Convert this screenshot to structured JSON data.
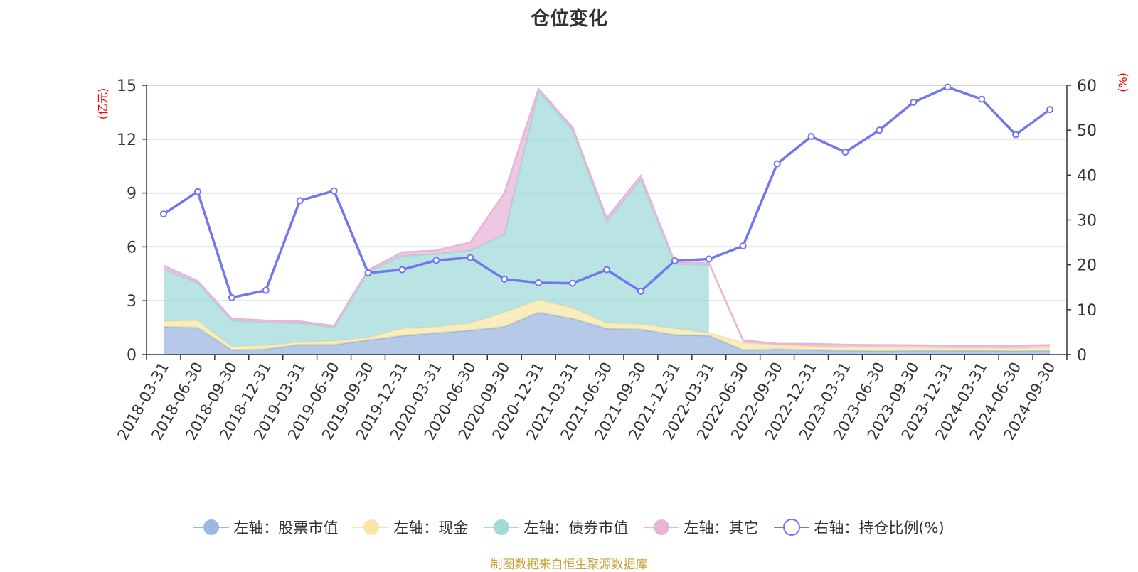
{
  "title": "仓位变化",
  "source_note": "制图数据来自恒生聚源数据库",
  "colors": {
    "stock": "#9db7e0",
    "cash": "#f7e6a7",
    "bond": "#a3d9d9",
    "other": "#e8b5d8",
    "ratio": "#7376ef",
    "axis_unit": "#ff0000",
    "grid": "#c8c8c8",
    "text": "#333333"
  },
  "legend": [
    {
      "key": "stock",
      "label": "左轴：股票市值",
      "marker": "filled-circle"
    },
    {
      "key": "cash",
      "label": "左轴：现金",
      "marker": "filled-circle"
    },
    {
      "key": "bond",
      "label": "左轴：债券市值",
      "marker": "filled-circle"
    },
    {
      "key": "other",
      "label": "左轴：其它",
      "marker": "filled-circle"
    },
    {
      "key": "ratio",
      "label": "右轴：持仓比例(%)",
      "marker": "hollow-circle"
    }
  ],
  "chart_data": {
    "type": "area",
    "title": "仓位变化",
    "left_axis": {
      "unit_label": "(亿元)",
      "min": 0,
      "max": 15,
      "ticks": [
        0,
        3,
        6,
        9,
        12,
        15
      ]
    },
    "right_axis": {
      "unit_label": "(%)",
      "min": 0,
      "max": 60,
      "ticks": [
        0,
        10,
        20,
        30,
        40,
        50,
        60
      ]
    },
    "grid": true,
    "legend_position": "bottom",
    "x": [
      "2018-03-31",
      "2018-06-30",
      "2018-09-30",
      "2018-12-31",
      "2019-03-31",
      "2019-06-30",
      "2019-09-30",
      "2019-12-31",
      "2020-03-31",
      "2020-06-30",
      "2020-09-30",
      "2020-12-31",
      "2021-03-31",
      "2021-06-30",
      "2021-09-30",
      "2021-12-31",
      "2022-03-31",
      "2022-06-30",
      "2022-09-30",
      "2022-12-31",
      "2023-03-31",
      "2023-06-30",
      "2023-09-30",
      "2023-12-31",
      "2024-03-31",
      "2024-06-30",
      "2024-09-30"
    ],
    "series": [
      {
        "name": "左轴：股票市值",
        "axis": "left",
        "stacked": true,
        "values": [
          1.55,
          1.5,
          0.25,
          0.3,
          0.55,
          0.55,
          0.8,
          1.05,
          1.2,
          1.35,
          1.55,
          2.35,
          2.0,
          1.45,
          1.4,
          1.1,
          1.05,
          0.25,
          0.3,
          0.25,
          0.22,
          0.2,
          0.22,
          0.22,
          0.22,
          0.2,
          0.22
        ]
      },
      {
        "name": "左轴：现金",
        "axis": "left",
        "stacked": true,
        "values": [
          0.3,
          0.4,
          0.2,
          0.2,
          0.15,
          0.2,
          0.15,
          0.4,
          0.35,
          0.4,
          0.8,
          0.7,
          0.6,
          0.3,
          0.3,
          0.35,
          0.15,
          0.4,
          0.25,
          0.2,
          0.2,
          0.2,
          0.18,
          0.15,
          0.15,
          0.15,
          0.18
        ]
      },
      {
        "name": "左轴：债券市值",
        "axis": "left",
        "stacked": true,
        "values": [
          2.9,
          2.1,
          1.45,
          1.3,
          1.05,
          0.75,
          3.65,
          4.05,
          4.05,
          4.05,
          4.35,
          11.65,
          9.9,
          5.65,
          8.05,
          3.6,
          3.8,
          0,
          0,
          0,
          0,
          0,
          0,
          0,
          0,
          0,
          0
        ]
      },
      {
        "name": "左轴：其它",
        "axis": "left",
        "stacked": true,
        "values": [
          0.2,
          0.1,
          0.1,
          0.1,
          0.1,
          0.1,
          0.1,
          0.2,
          0.2,
          0.45,
          2.3,
          0.1,
          0.15,
          0.2,
          0.2,
          0.1,
          0.1,
          0.15,
          0.05,
          0.15,
          0.13,
          0.13,
          0.12,
          0.13,
          0.13,
          0.15,
          0.13
        ]
      },
      {
        "name": "右轴：持仓比例(%)",
        "axis": "right",
        "type": "line",
        "values": [
          31.3,
          36.3,
          12.7,
          14.3,
          34.3,
          36.5,
          18.2,
          18.9,
          21.0,
          21.6,
          16.8,
          16.0,
          15.9,
          18.9,
          14.1,
          20.9,
          21.3,
          24.2,
          42.5,
          48.6,
          45.1,
          50.0,
          56.2,
          59.6,
          56.9,
          49.0,
          54.6
        ]
      }
    ]
  }
}
